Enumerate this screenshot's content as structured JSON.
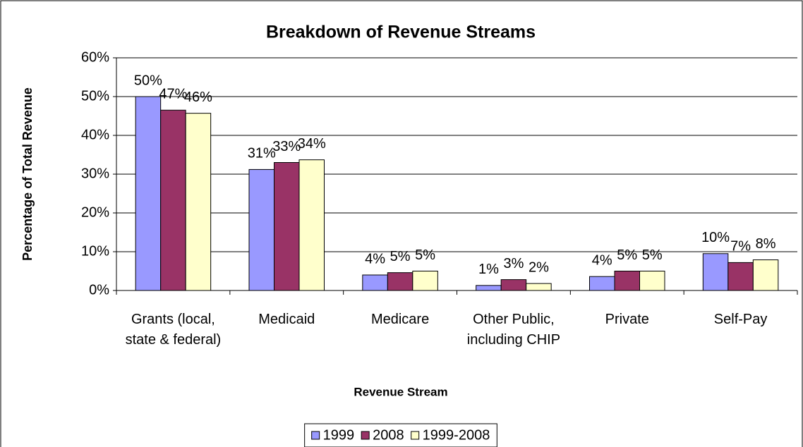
{
  "chart_data": {
    "type": "bar",
    "title": "Breakdown of Revenue Streams",
    "x_label": "Revenue Stream",
    "y_label": "Percentage of Total Revenue",
    "categories": [
      "Grants (local, state & federal)",
      "Medicaid",
      "Medicare",
      "Other Public, including CHIP",
      "Private",
      "Self-Pay"
    ],
    "series": [
      {
        "name": "1999",
        "color": "#9999ff",
        "values": [
          50,
          31.2,
          4,
          1.3,
          3.6,
          9.5
        ],
        "value_labels": [
          "50%",
          "31%",
          "4%",
          "1%",
          "4%",
          "10%"
        ]
      },
      {
        "name": "2008",
        "color": "#993366",
        "values": [
          46.5,
          33,
          4.6,
          2.8,
          5,
          7.2
        ],
        "value_labels": [
          "47%",
          "33%",
          "5%",
          "3%",
          "5%",
          "7%"
        ]
      },
      {
        "name": "1999-2008",
        "color": "#ffffcc",
        "values": [
          45.7,
          33.7,
          5,
          1.8,
          5,
          7.9
        ],
        "value_labels": [
          "46%",
          "34%",
          "5%",
          "2%",
          "5%",
          "8%"
        ]
      }
    ],
    "ylim": [
      0,
      60
    ],
    "yticks": [
      {
        "value": 0,
        "label": "0%"
      },
      {
        "value": 10,
        "label": "10%"
      },
      {
        "value": 20,
        "label": "20%"
      },
      {
        "value": 30,
        "label": "30%"
      },
      {
        "value": 40,
        "label": "40%"
      },
      {
        "value": 50,
        "label": "50%"
      },
      {
        "value": 60,
        "label": "60%"
      }
    ],
    "grid": true,
    "legend": "bottom"
  }
}
